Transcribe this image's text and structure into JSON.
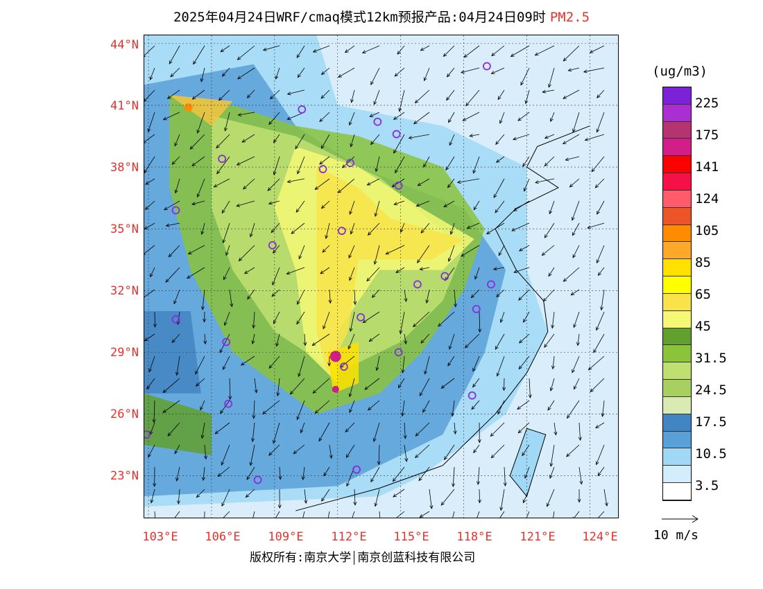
{
  "title": {
    "main": "2025年04月24日WRF/cmaq模式12km预报产品:04月24日09时",
    "species": "PM2.5"
  },
  "lat_labels": [
    "44°N",
    "41°N",
    "38°N",
    "35°N",
    "32°N",
    "29°N",
    "26°N",
    "23°N"
  ],
  "lon_labels": [
    "103°E",
    "106°E",
    "109°E",
    "112°E",
    "115°E",
    "118°E",
    "121°E",
    "124°E"
  ],
  "legend": {
    "unit": "(ug/m3)",
    "labels": [
      "225",
      "175",
      "141",
      "124",
      "105",
      "85",
      "65",
      "45",
      "31.5",
      "24.5",
      "17.5",
      "10.5",
      "3.5"
    ],
    "colors": [
      "#7d21d6",
      "#a92fd0",
      "#b53370",
      "#d21e89",
      "#ff0000",
      "#f51047",
      "#ff5b6a",
      "#eb5528",
      "#ff8c00",
      "#fda829",
      "#ffe000",
      "#ffff00",
      "#f8e44a",
      "#f4f874",
      "#61a02e",
      "#8bc33c",
      "#bfdf71",
      "#a8d060",
      "#d9eab3",
      "#4385c2",
      "#5aa0d8",
      "#a0d8f5",
      "#d3edfa",
      "#ffffff"
    ],
    "wind_ref": "10 m/s"
  },
  "stations": [
    {
      "lon": 119.1,
      "lat": 42.9
    },
    {
      "lon": 110.3,
      "lat": 40.8
    },
    {
      "lon": 113.9,
      "lat": 40.2
    },
    {
      "lon": 114.8,
      "lat": 39.6
    },
    {
      "lon": 106.5,
      "lat": 38.4
    },
    {
      "lon": 111.3,
      "lat": 37.9
    },
    {
      "lon": 112.6,
      "lat": 38.2
    },
    {
      "lon": 114.9,
      "lat": 37.1
    },
    {
      "lon": 104.3,
      "lat": 35.9
    },
    {
      "lon": 112.2,
      "lat": 34.9
    },
    {
      "lon": 108.9,
      "lat": 34.2
    },
    {
      "lon": 115.8,
      "lat": 32.3
    },
    {
      "lon": 117.1,
      "lat": 32.7
    },
    {
      "lon": 119.3,
      "lat": 32.3
    },
    {
      "lon": 118.6,
      "lat": 31.1
    },
    {
      "lon": 104.3,
      "lat": 30.6
    },
    {
      "lon": 113.1,
      "lat": 30.7
    },
    {
      "lon": 106.7,
      "lat": 29.5
    },
    {
      "lon": 114.9,
      "lat": 29.0
    },
    {
      "lon": 112.3,
      "lat": 28.3
    },
    {
      "lon": 106.8,
      "lat": 26.5
    },
    {
      "lon": 118.4,
      "lat": 26.9
    },
    {
      "lon": 102.9,
      "lat": 25.0
    },
    {
      "lon": 108.2,
      "lat": 22.8
    },
    {
      "lon": 112.9,
      "lat": 23.3
    }
  ],
  "footer": {
    "left": "版权所有:南京大学",
    "right": "南京创蓝科技有限公司"
  }
}
